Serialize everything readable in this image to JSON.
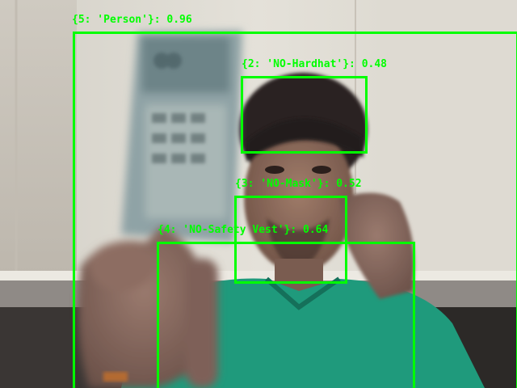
{
  "colors": {
    "detection_box": "#00ff00",
    "wall": "#d9d5cc",
    "shirt": "#1f9a7c",
    "skin": "#8a6a5c",
    "hair": "#2a2220"
  },
  "detections": [
    {
      "id": "person",
      "label": "{5: 'Person'}: 0.96"
    },
    {
      "id": "hardhat",
      "label": "{2: 'NO-Hardhat'}: 0.48"
    },
    {
      "id": "mask",
      "label": "{3: 'NO-Mask'}: 0.52"
    },
    {
      "id": "vest",
      "label": "{4: 'NO-Safety Vest'}: 0.64"
    }
  ]
}
